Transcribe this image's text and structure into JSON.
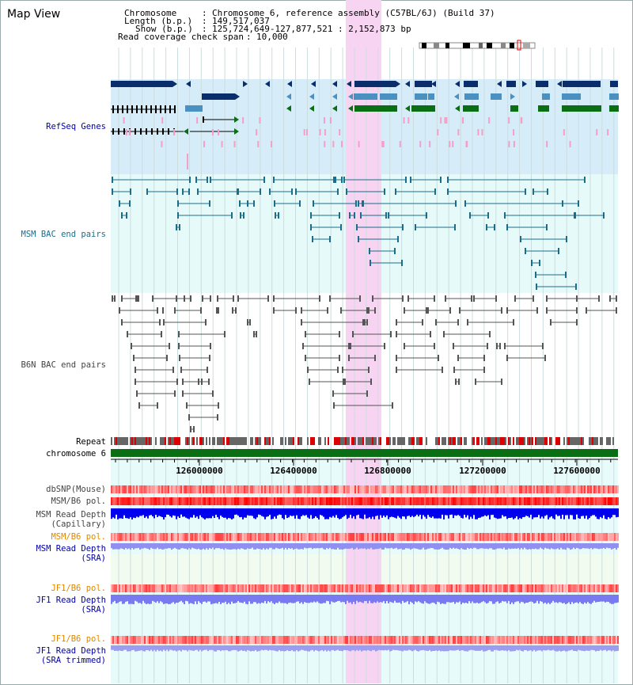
{
  "window": {
    "title": "Map View"
  },
  "info": {
    "chromosome_label": "Chromosome",
    "chromosome_value": "Chromosome 6, reference assembly (C57BL/6J) (Build 37)",
    "length_label": "Length (b.p.)",
    "length_value": "149,517,037",
    "show_label": "Show (b.p.)",
    "show_value": "125,724,649-127,877,521 : 2,152,873 bp",
    "coverage_label": "Read coverage check span",
    "coverage_value": "10,000"
  },
  "tracks": {
    "refseq": "RefSeq Genes",
    "msm_bac": "MSM BAC end pairs",
    "b6n_bac": "B6N BAC end pairs",
    "repeat": "Repeat",
    "chromosome": "chromosome 6",
    "dbsnp": "dbSNP(Mouse)",
    "msm_b6_pol_1": "MSM/B6 pol.",
    "msm_depth_cap_1": "MSM Read Depth",
    "msm_depth_cap_2": "(Capillary)",
    "msm_b6_pol_2": "MSM/B6 pol.",
    "msm_depth_sra_1": "MSM Read Depth",
    "msm_depth_sra_2": "(SRA)",
    "jf1_b6_pol_1": "JF1/B6 pol.",
    "jf1_depth_sra_1": "JF1 Read Depth",
    "jf1_depth_sra_2": "(SRA)",
    "jf1_b6_pol_2": "JF1/B6 pol.",
    "jf1_depth_trim_1": "JF1 Read Depth",
    "jf1_depth_trim_2": "(SRA trimmed)"
  },
  "axis": {
    "ticks": [
      "126000000",
      "126400000",
      "126800000",
      "127200000",
      "127600000"
    ]
  },
  "colors": {
    "refseq_bg": "#d6ecf8",
    "msm_bg": "#e6fafa",
    "highlight": "#f7d4f2",
    "dark_gene": "#0a2d6b",
    "mid_gene": "#4a90c0",
    "green_gene": "#0a6e14",
    "msm_line": "#1a6e8c",
    "b6n_line": "#555555",
    "chrom_bar": "#0a6e14",
    "label_blue": "#0000aa",
    "label_orange": "#dd8800",
    "label_gray": "#444444"
  }
}
